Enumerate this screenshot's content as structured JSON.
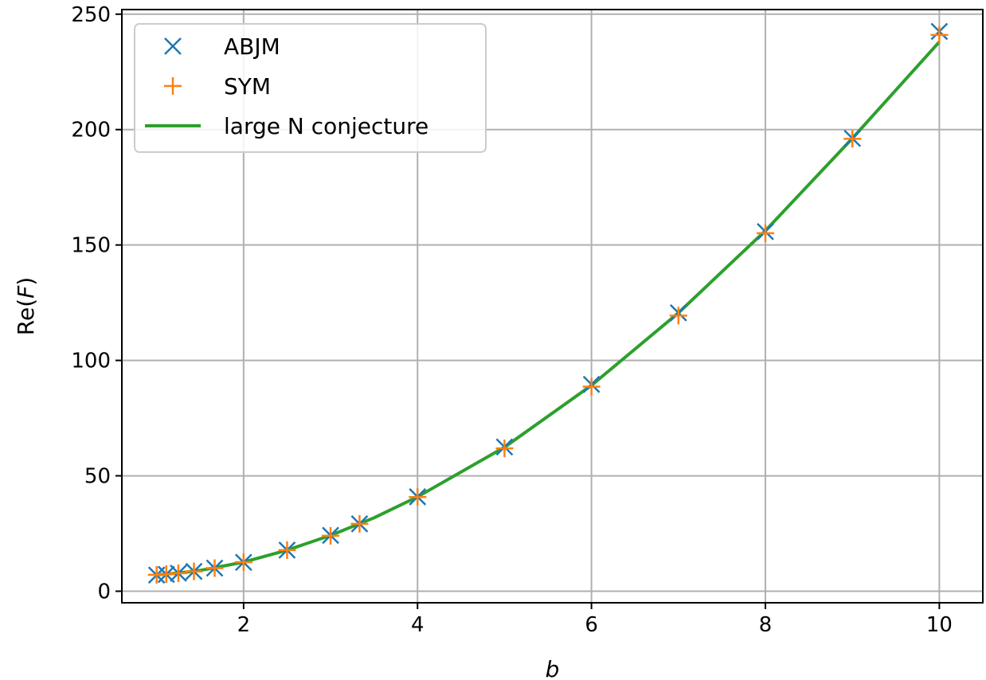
{
  "chart_data": {
    "type": "scatter",
    "xlabel": "b",
    "ylabel": "Re(F)",
    "xlim": [
      0.6,
      10.5
    ],
    "ylim": [
      -5,
      252
    ],
    "x_ticks": [
      2,
      4,
      6,
      8,
      10
    ],
    "y_ticks": [
      0,
      50,
      100,
      150,
      200,
      250
    ],
    "grid": true,
    "legend_position": "upper-left",
    "legend": [
      "ABJM",
      "SYM",
      "large N conjecture"
    ],
    "series": [
      {
        "name": "ABJM",
        "marker": "x",
        "color": "#1f77b4",
        "x": [
          1.0,
          1.111,
          1.25,
          1.429,
          1.667,
          2.0,
          2.5,
          3.0,
          3.333,
          4.0,
          5.0,
          6.0,
          7.0,
          8.0,
          9.0,
          10.0
        ],
        "y": [
          7.0,
          7.3,
          7.8,
          8.6,
          10.0,
          12.5,
          17.8,
          24.2,
          29.2,
          40.9,
          62.5,
          89.6,
          120.6,
          155.8,
          196.2,
          242.5
        ]
      },
      {
        "name": "SYM",
        "marker": "+",
        "color": "#ff7f0e",
        "x": [
          1.0,
          1.111,
          1.25,
          1.429,
          1.667,
          2.0,
          2.5,
          3.0,
          3.333,
          4.0,
          5.0,
          6.0,
          7.0,
          8.0,
          9.0,
          10.0
        ],
        "y": [
          7.1,
          7.4,
          7.8,
          8.6,
          10.0,
          12.6,
          17.8,
          24.0,
          29.2,
          40.8,
          61.9,
          88.6,
          119.4,
          155.1,
          196.0,
          241.0
        ]
      },
      {
        "name": "large N conjecture",
        "marker": "line",
        "color": "#2ca02c",
        "x": [
          1.0,
          1.25,
          1.5,
          2.0,
          2.5,
          3.0,
          3.5,
          4.0,
          5.0,
          6.0,
          7.0,
          8.0,
          9.0,
          10.0
        ],
        "y": [
          7.1,
          7.9,
          9.0,
          12.6,
          17.8,
          24.2,
          31.8,
          40.9,
          62.4,
          89.2,
          120.6,
          156.2,
          196.2,
          238.0
        ]
      }
    ]
  }
}
